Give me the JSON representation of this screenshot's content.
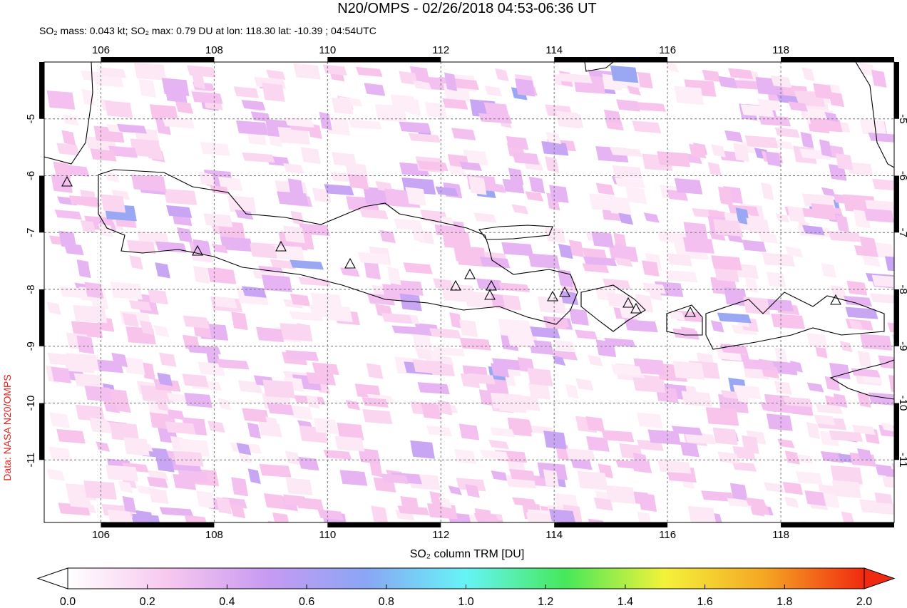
{
  "header": {
    "title": "N20/OMPS - 02/26/2018 04:53-06:36 UT",
    "subtitle": "SO₂ mass: 0.043 kt; SO₂ max: 0.79 DU at lon: 118.30 lat: -10.39 ; 04:54UTC"
  },
  "map": {
    "xlim": [
      105,
      120
    ],
    "ylim": [
      -12.1,
      -4
    ],
    "xticks": [
      106,
      108,
      110,
      112,
      114,
      116,
      118
    ],
    "yticks": [
      -5,
      -6,
      -7,
      -8,
      -9,
      -10,
      -11
    ],
    "grid": true
  },
  "colorbar": {
    "label": "SO₂ column TRM [DU]",
    "range": [
      0,
      2
    ],
    "ticks": [
      {
        "value": 0,
        "label": "0.0"
      },
      {
        "value": 0.2,
        "label": "0.2"
      },
      {
        "value": 0.4,
        "label": "0.4"
      },
      {
        "value": 0.6,
        "label": "0.6"
      },
      {
        "value": 0.8,
        "label": "0.8"
      },
      {
        "value": 1,
        "label": "1.0"
      },
      {
        "value": 1.2,
        "label": "1.2"
      },
      {
        "value": 1.4,
        "label": "1.4"
      },
      {
        "value": 1.6,
        "label": "1.6"
      },
      {
        "value": 1.8,
        "label": "1.8"
      },
      {
        "value": 2,
        "label": "2.0"
      }
    ],
    "colors": [
      "#ffffff",
      "#f7c8ef",
      "#c89af2",
      "#8aa6f5",
      "#66f4f6",
      "#46e85a",
      "#f4f23a",
      "#f5a623",
      "#f02a10"
    ]
  },
  "credit": "Data: NASA N20/OMPS"
}
